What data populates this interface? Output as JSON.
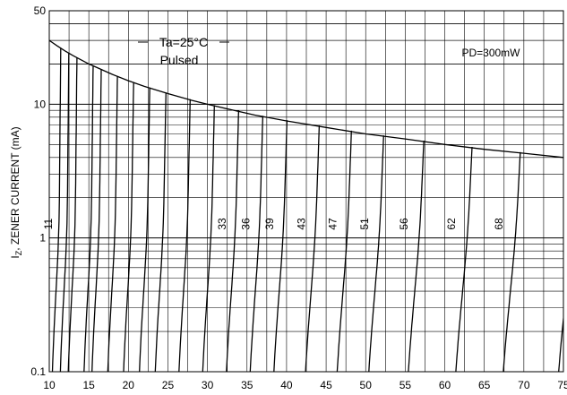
{
  "chart_data": {
    "type": "line",
    "title": "",
    "xlabel": "",
    "ylabel": "IZ, ZENER CURRENT (mA)",
    "ylabel_main": "I",
    "ylabel_sub": "Z",
    "ylabel_rest": ", ZENER CURRENT (mA)",
    "x_range": [
      10,
      75
    ],
    "y_range": [
      0.1,
      50
    ],
    "y_scale": "log",
    "grid": true,
    "x_ticks": [
      10,
      15,
      20,
      25,
      30,
      35,
      40,
      45,
      50,
      55,
      60,
      65,
      70,
      75
    ],
    "y_ticks": [
      {
        "value": 0.1,
        "label": "0.1"
      },
      {
        "value": 1,
        "label": "1"
      },
      {
        "value": 10,
        "label": "10"
      },
      {
        "value": 50,
        "label": "50"
      }
    ],
    "annotations": {
      "temperature": "Ta=25°C",
      "mode": "Pulsed",
      "power": "PD=300mW"
    },
    "power_limit_curve": {
      "name": "PD=300mW",
      "points": [
        {
          "x": 10,
          "y": 30
        },
        {
          "x": 11,
          "y": 27.3
        },
        {
          "x": 12,
          "y": 25
        },
        {
          "x": 13,
          "y": 23.1
        },
        {
          "x": 15,
          "y": 20
        },
        {
          "x": 18,
          "y": 16.7
        },
        {
          "x": 20,
          "y": 15
        },
        {
          "x": 22,
          "y": 13.6
        },
        {
          "x": 25,
          "y": 12
        },
        {
          "x": 28,
          "y": 10.7
        },
        {
          "x": 30,
          "y": 10
        },
        {
          "x": 33,
          "y": 9.1
        },
        {
          "x": 36,
          "y": 8.3
        },
        {
          "x": 40,
          "y": 7.5
        },
        {
          "x": 45,
          "y": 6.7
        },
        {
          "x": 50,
          "y": 6
        },
        {
          "x": 55,
          "y": 5.5
        },
        {
          "x": 60,
          "y": 5
        },
        {
          "x": 65,
          "y": 4.6
        },
        {
          "x": 70,
          "y": 4.3
        },
        {
          "x": 75,
          "y": 4
        }
      ]
    },
    "zener_curves": [
      {
        "vz": 11,
        "label": "11"
      },
      {
        "vz": 12,
        "label": ""
      },
      {
        "vz": 13,
        "label": ""
      },
      {
        "vz": 15,
        "label": ""
      },
      {
        "vz": 16,
        "label": ""
      },
      {
        "vz": 18,
        "label": ""
      },
      {
        "vz": 20,
        "label": ""
      },
      {
        "vz": 22,
        "label": ""
      },
      {
        "vz": 24,
        "label": ""
      },
      {
        "vz": 27,
        "label": ""
      },
      {
        "vz": 30,
        "label": ""
      },
      {
        "vz": 33,
        "label": "33"
      },
      {
        "vz": 36,
        "label": "36"
      },
      {
        "vz": 39,
        "label": "39"
      },
      {
        "vz": 43,
        "label": "43"
      },
      {
        "vz": 47,
        "label": "47"
      },
      {
        "vz": 51,
        "label": "51"
      },
      {
        "vz": 56,
        "label": "56"
      },
      {
        "vz": 62,
        "label": "62"
      },
      {
        "vz": 68,
        "label": "68"
      },
      {
        "vz": 75,
        "label": ""
      }
    ]
  }
}
